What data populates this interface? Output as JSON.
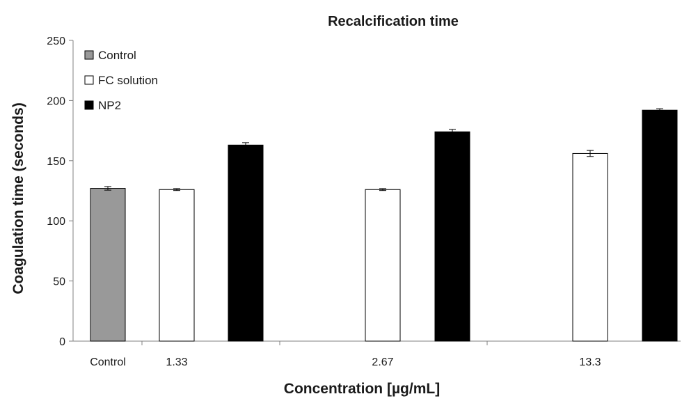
{
  "chart_data": {
    "type": "bar",
    "title": "Recalcification time",
    "xlabel": "Concentration [µg/mL]",
    "ylabel": "Coagulation time (seconds)",
    "ylim": [
      0,
      250
    ],
    "yticks": [
      0,
      50,
      100,
      150,
      200,
      250
    ],
    "categories": [
      "Control",
      "1.33",
      "2.67",
      "13.3"
    ],
    "grid": false,
    "legend_position": "top-left",
    "series": [
      {
        "name": "Control",
        "color": "#999999",
        "values": [
          127,
          null,
          null,
          null
        ],
        "errors": [
          1.5,
          null,
          null,
          null
        ]
      },
      {
        "name": "FC solution",
        "color": "#ffffff",
        "values": [
          null,
          126,
          126,
          156
        ],
        "errors": [
          null,
          0.8,
          0.8,
          2.5
        ]
      },
      {
        "name": "NP2",
        "color": "#000000",
        "values": [
          null,
          163,
          174,
          192
        ],
        "errors": [
          null,
          2,
          2,
          1.2
        ]
      }
    ]
  }
}
